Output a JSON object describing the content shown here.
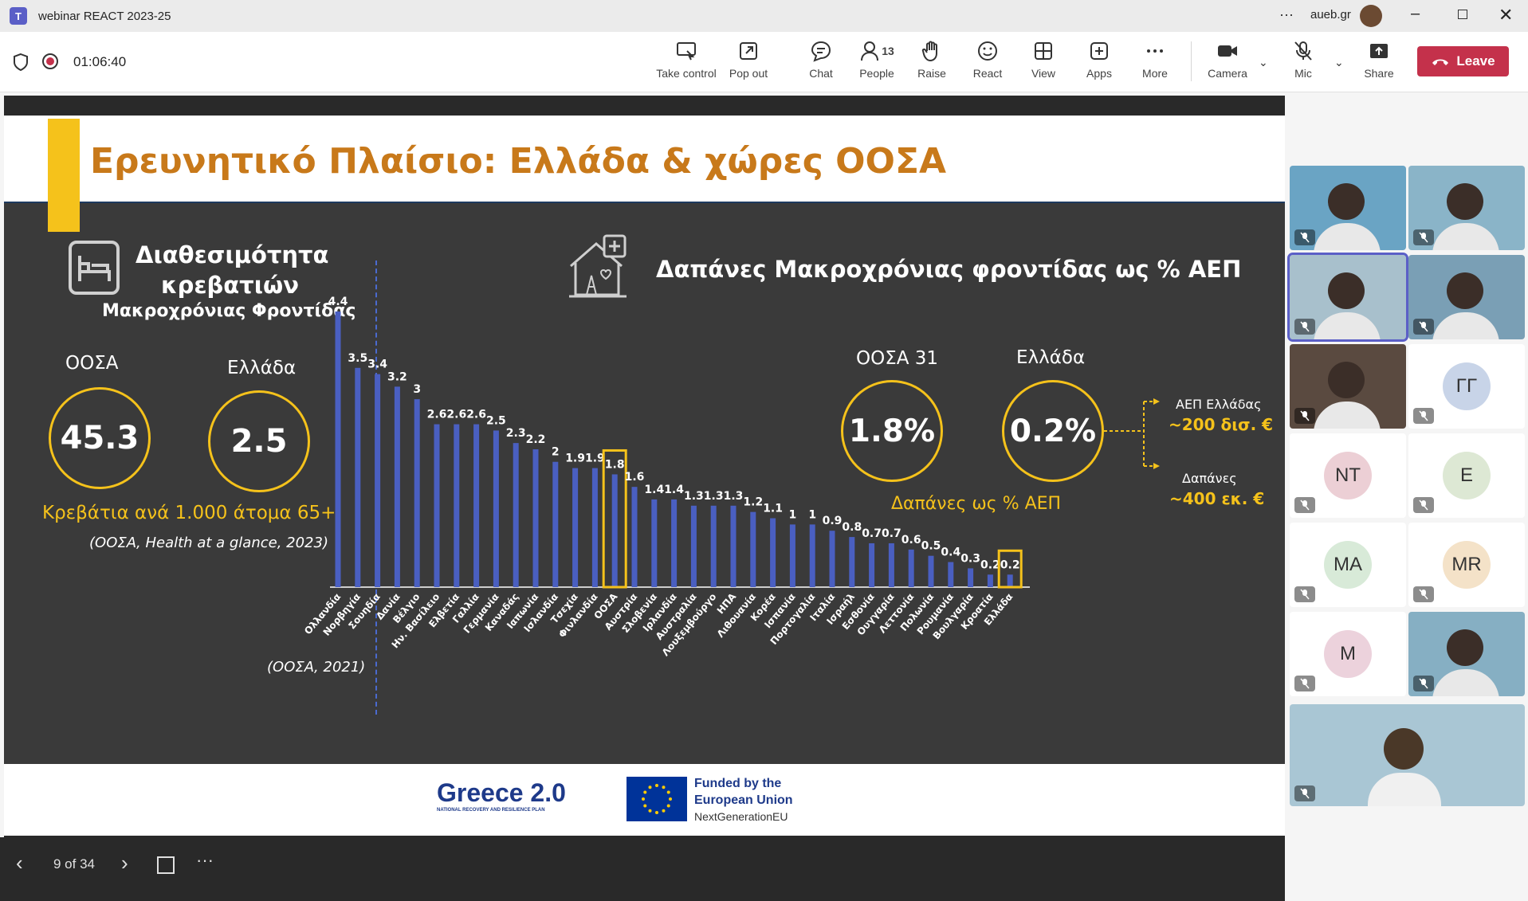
{
  "window": {
    "title": "webinar REACT 2023-25",
    "org": "aueb.gr"
  },
  "meeting": {
    "timer": "01:06:40",
    "people_count": "13"
  },
  "toolbar": {
    "buttons": [
      {
        "label": "Take control"
      },
      {
        "label": "Pop out"
      },
      {
        "label": "Chat"
      },
      {
        "label": "People"
      },
      {
        "label": "Raise"
      },
      {
        "label": "React"
      },
      {
        "label": "View"
      },
      {
        "label": "Apps"
      },
      {
        "label": "More"
      },
      {
        "label": "Camera"
      },
      {
        "label": "Mic"
      },
      {
        "label": "Share"
      }
    ],
    "leave_label": "Leave",
    "leave_color": "#c4314b"
  },
  "slide": {
    "title": "Ερευνητικό Πλαίσιο: Ελλάδα & χώρες ΟΟΣΑ",
    "left": {
      "heading1": "Διαθεσιμότητα",
      "heading2": "κρεβατιών",
      "heading3": "Μακροχρόνιας Φροντίδας",
      "oecd_label": "ΟΟΣΑ",
      "oecd_value": "45.3",
      "greece_label": "Ελλάδα",
      "greece_value": "2.5",
      "caption": "Κρεβάτια ανά 1.000 άτομα 65+",
      "source": "(ΟΟΣΑ, Health at a glance, 2023)",
      "source2": "(ΟΟΣΑ, 2021)"
    },
    "right": {
      "heading": "Δαπάνες Μακροχρόνιας φροντίδας ως % ΑΕΠ",
      "oecd_label": "ΟΟΣΑ 31",
      "oecd_value": "1.8%",
      "greece_label": "Ελλάδα",
      "greece_value": "0.2%",
      "caption": "Δαπάνες ως % ΑΕΠ",
      "gdp_label": "ΑΕΠ Ελλάδας",
      "gdp_value": "~200 δισ. €",
      "spend_label": "Δαπάνες",
      "spend_value": "~400 εκ. €"
    },
    "footer": {
      "greece20": "Greece 2.0",
      "greece20_sub": "NATIONAL RECOVERY AND RESILIENCE PLAN",
      "eu1": "Funded by the",
      "eu2": "European Union",
      "eu3": "NextGenerationEU"
    }
  },
  "chart_data": {
    "type": "bar",
    "categories": [
      "Ολλανδία",
      "Νορβηγία",
      "Σουηδία",
      "Δανία",
      "Βέλγιο",
      "Ην. Βασίλειο",
      "Ελβετία",
      "Γαλλία",
      "Γερμανία",
      "Καναδάς",
      "Ιαπωνία",
      "Ισλανδία",
      "Τσεχία",
      "Φινλανδία",
      "ΟΟΣΑ",
      "Αυστρία",
      "Σλοβενία",
      "Ιρλανδία",
      "Αυστραλία",
      "Λουξεμβούργο",
      "ΗΠΑ",
      "Λιθουανία",
      "Κορέα",
      "Ισπανία",
      "Πορτογαλία",
      "Ιταλία",
      "Ισραήλ",
      "Εσθονία",
      "Ουγγαρία",
      "Λεττονία",
      "Πολωνία",
      "Ρουμανία",
      "Βουλγαρία",
      "Κροατία",
      "Ελλάδα"
    ],
    "values": [
      4.4,
      3.5,
      3.4,
      3.2,
      3,
      2.6,
      2.6,
      2.6,
      2.5,
      2.3,
      2.2,
      2,
      1.9,
      1.9,
      1.8,
      1.6,
      1.4,
      1.4,
      1.3,
      1.3,
      1.3,
      1.2,
      1.1,
      1,
      1,
      0.9,
      0.8,
      0.7,
      0.7,
      0.6,
      0.5,
      0.4,
      0.3,
      0.2,
      0.2
    ],
    "highlighted": [
      "ΟΟΣΑ",
      "Ελλάδα"
    ],
    "bar_color": "#4a5fc1",
    "highlight_color": "#f5c21b",
    "ylim": [
      0,
      4.4
    ]
  },
  "slides_nav": {
    "page": "9 of 34"
  },
  "participants": [
    {
      "initials": "",
      "kind": "video"
    },
    {
      "initials": "",
      "kind": "video"
    },
    {
      "initials": "",
      "kind": "video"
    },
    {
      "initials": "",
      "kind": "video"
    },
    {
      "initials": "",
      "kind": "video"
    },
    {
      "initials": "ΓΓ",
      "kind": "avatar",
      "color": "#c8d4e8"
    },
    {
      "initials": "NT",
      "kind": "avatar",
      "color": "#eccfd5"
    },
    {
      "initials": "E",
      "kind": "avatar",
      "color": "#dde8d4"
    },
    {
      "initials": "MA",
      "kind": "avatar",
      "color": "#d8ead8"
    },
    {
      "initials": "MR",
      "kind": "avatar",
      "color": "#f4e2c8"
    },
    {
      "initials": "M",
      "kind": "avatar",
      "color": "#ecd2dc"
    },
    {
      "initials": "",
      "kind": "video"
    }
  ]
}
